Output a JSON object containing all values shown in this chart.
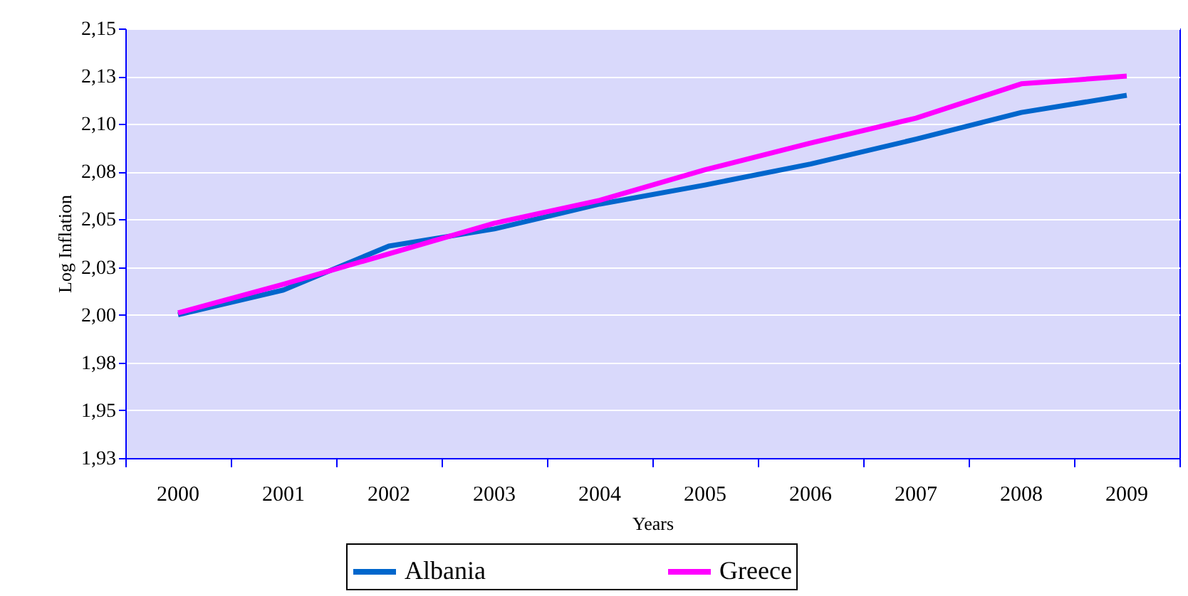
{
  "chart_data": {
    "type": "line",
    "xlabel": "Years",
    "ylabel": "Log Inflation",
    "categories": [
      "2000",
      "2001",
      "2002",
      "2003",
      "2004",
      "2005",
      "2006",
      "2007",
      "2008",
      "2009"
    ],
    "series": [
      {
        "name": "Albania",
        "color": "#0066cc",
        "values": [
          2.0,
          2.013,
          2.036,
          2.045,
          2.058,
          2.068,
          2.079,
          2.092,
          2.106,
          2.115
        ]
      },
      {
        "name": "Greece",
        "color": "#ff00ff",
        "values": [
          2.001,
          2.016,
          2.032,
          2.048,
          2.06,
          2.076,
          2.09,
          2.103,
          2.121,
          2.125
        ]
      }
    ],
    "ylim": [
      1.925,
      2.15
    ],
    "yticks": [
      {
        "value": 1.925,
        "label": "1,93"
      },
      {
        "value": 1.95,
        "label": "1,95"
      },
      {
        "value": 1.975,
        "label": "1,98"
      },
      {
        "value": 2.0,
        "label": "2,00"
      },
      {
        "value": 2.025,
        "label": "2,03"
      },
      {
        "value": 2.05,
        "label": "2,05"
      },
      {
        "value": 2.075,
        "label": "2,08"
      },
      {
        "value": 2.1,
        "label": "2,10"
      },
      {
        "value": 2.125,
        "label": "2,13"
      },
      {
        "value": 2.15,
        "label": "2,15"
      }
    ],
    "grid": "y",
    "legend": "bottom",
    "line_style": "solid",
    "marker": "none"
  }
}
